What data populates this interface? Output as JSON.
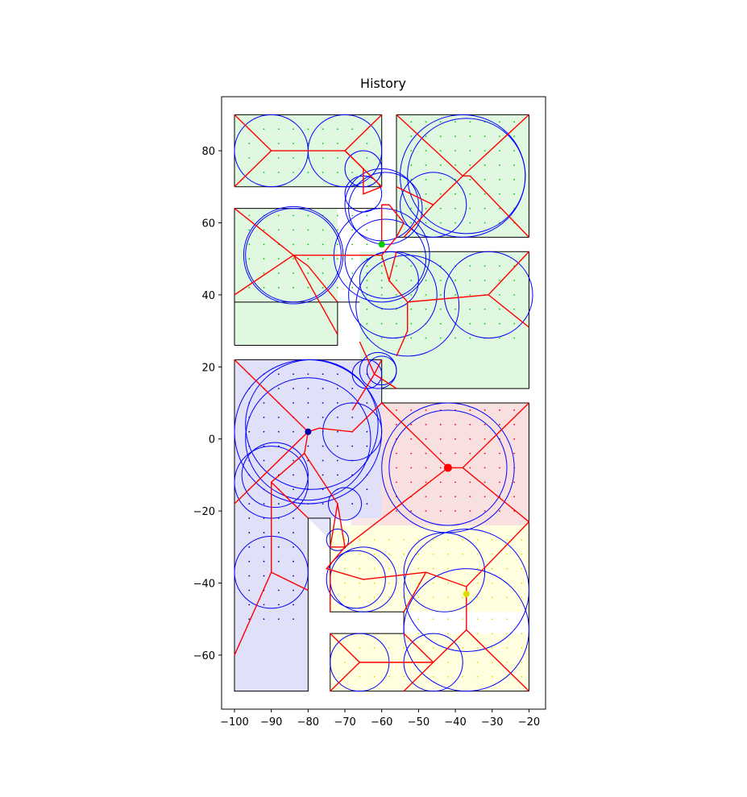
{
  "chart_data": {
    "type": "scatter",
    "title": "History",
    "xlabel": "",
    "ylabel": "",
    "xlim": [
      -103.5,
      -15.5
    ],
    "ylim": [
      -75,
      95
    ],
    "xticks": [
      -100,
      -90,
      -80,
      -70,
      -60,
      -50,
      -40,
      -30,
      -20
    ],
    "yticks": [
      -60,
      -40,
      -20,
      0,
      20,
      40,
      60,
      80
    ],
    "grid": false,
    "colors": {
      "region_fill_green": "#e0f8e0",
      "region_fill_blue": "#e0e0f8",
      "region_fill_red": "#f8e0e0",
      "region_fill_yellow": "#ffffe0",
      "wall_outline": "#000000",
      "skeleton": "#ff0000",
      "circle": "#0000ff",
      "green_dot": "#00cc00",
      "blue_dot": "#0000aa",
      "red_dot": "#ff0000",
      "yellow_dot": "#dddd00"
    },
    "rectangles": [
      {
        "x": [
          -100,
          -60
        ],
        "y": [
          70,
          90
        ],
        "fill": "green"
      },
      {
        "x": [
          -56,
          -20
        ],
        "y": [
          56,
          90
        ],
        "fill": "green"
      },
      {
        "x": [
          -100,
          -72
        ],
        "y": [
          26,
          64
        ],
        "fill": "green"
      },
      {
        "x": [
          -100,
          -72
        ],
        "y": [
          38,
          64
        ],
        "fill": "green",
        "shade_only": true
      },
      {
        "x": [
          -66,
          -20
        ],
        "y": [
          14,
          52
        ],
        "fill": "green"
      },
      {
        "x": [
          -100,
          -80
        ],
        "y": [
          -70,
          22
        ],
        "fill": "blue"
      },
      {
        "x": [
          -80,
          -60
        ],
        "y": [
          -22,
          22
        ],
        "fill": "blue",
        "open": true
      },
      {
        "x": [
          -60,
          -20
        ],
        "y": [
          -24,
          10
        ],
        "fill": "red"
      },
      {
        "x": [
          -74,
          -20
        ],
        "y": [
          -48,
          -24
        ],
        "fill": "yellow"
      },
      {
        "x": [
          -74,
          -20
        ],
        "y": [
          -70,
          -54
        ],
        "fill": "yellow"
      }
    ],
    "walls": [
      [
        [
          -100,
          70
        ],
        [
          -60,
          70
        ],
        [
          -60,
          90
        ],
        [
          -100,
          90
        ],
        [
          -100,
          70
        ]
      ],
      [
        [
          -56,
          56
        ],
        [
          -20,
          56
        ],
        [
          -20,
          90
        ],
        [
          -56,
          90
        ],
        [
          -56,
          56
        ]
      ],
      [
        [
          -100,
          26
        ],
        [
          -72,
          26
        ],
        [
          -72,
          38
        ],
        [
          -100,
          38
        ]
      ],
      [
        [
          -100,
          26
        ],
        [
          -100,
          64
        ],
        [
          -60,
          64
        ]
      ],
      [
        [
          -66,
          38
        ],
        [
          -72,
          38
        ]
      ],
      [
        [
          -56,
          52
        ],
        [
          -20,
          52
        ],
        [
          -20,
          14
        ],
        [
          -60,
          14
        ],
        [
          -60,
          22
        ],
        [
          -100,
          22
        ],
        [
          -100,
          -70
        ],
        [
          -80,
          -70
        ],
        [
          -80,
          -22
        ],
        [
          -74,
          -22
        ],
        [
          -74,
          -48
        ],
        [
          -54,
          -48
        ],
        [
          -54,
          -54
        ],
        [
          -74,
          -54
        ],
        [
          -74,
          -70
        ],
        [
          -20,
          -70
        ],
        [
          -20,
          10
        ],
        [
          -60,
          10
        ],
        [
          -60,
          14
        ]
      ]
    ],
    "shades": [
      {
        "fill": "green",
        "points": [
          [
            -100,
            38
          ],
          [
            -72,
            28
          ],
          [
            -85,
            34
          ]
        ]
      },
      {
        "fill": "green",
        "points": [
          [
            -60,
            52
          ],
          [
            -56,
            24
          ],
          [
            -20,
            32
          ],
          [
            -20,
            52
          ]
        ]
      },
      {
        "fill": "blue",
        "points": [
          [
            -100,
            -22
          ],
          [
            -80,
            -40
          ],
          [
            -100,
            -60
          ]
        ]
      },
      {
        "fill": "red",
        "points": [
          [
            -60,
            10
          ],
          [
            -70,
            -30
          ],
          [
            -20,
            -23
          ],
          [
            -20,
            10
          ]
        ]
      },
      {
        "fill": "blue",
        "points": [
          [
            -80,
            -22
          ],
          [
            -72,
            -30
          ],
          [
            -74,
            -22
          ]
        ]
      }
    ],
    "skeleton_lines": [
      [
        [
          -100,
          90
        ],
        [
          -90,
          80
        ],
        [
          -100,
          70
        ]
      ],
      [
        [
          -90,
          80
        ],
        [
          -70,
          80
        ],
        [
          -60,
          90
        ]
      ],
      [
        [
          -70,
          80
        ],
        [
          -60,
          70
        ]
      ],
      [
        [
          -70,
          80
        ],
        [
          -65,
          75
        ],
        [
          -65,
          68
        ],
        [
          -60,
          70
        ]
      ],
      [
        [
          -56,
          90
        ],
        [
          -38,
          73
        ],
        [
          -20,
          90
        ]
      ],
      [
        [
          -38,
          73
        ],
        [
          -36,
          73
        ],
        [
          -20,
          56
        ]
      ],
      [
        [
          -38,
          73
        ],
        [
          -46,
          65
        ],
        [
          -56,
          70
        ]
      ],
      [
        [
          -46,
          65
        ],
        [
          -54,
          56
        ]
      ],
      [
        [
          -60,
          65
        ],
        [
          -60,
          54
        ]
      ],
      [
        [
          -60,
          65
        ],
        [
          -58,
          65
        ],
        [
          -54,
          60
        ],
        [
          -56,
          56
        ]
      ],
      [
        [
          -100,
          64
        ],
        [
          -84,
          51
        ],
        [
          -100,
          40
        ]
      ],
      [
        [
          -84,
          51
        ],
        [
          -60,
          51
        ],
        [
          -56,
          56
        ]
      ],
      [
        [
          -84,
          51
        ],
        [
          -72,
          29
        ]
      ],
      [
        [
          -84,
          51
        ],
        [
          -80,
          48
        ],
        [
          -72,
          38
        ]
      ],
      [
        [
          -60,
          51
        ],
        [
          -58,
          44
        ],
        [
          -56,
          52
        ]
      ],
      [
        [
          -58,
          44
        ],
        [
          -53,
          38
        ],
        [
          -53,
          30
        ],
        [
          -56,
          23
        ]
      ],
      [
        [
          -53,
          38
        ],
        [
          -31,
          40
        ],
        [
          -20,
          52
        ]
      ],
      [
        [
          -31,
          40
        ],
        [
          -20,
          31
        ]
      ],
      [
        [
          -66,
          27
        ],
        [
          -62,
          18
        ],
        [
          -56,
          14
        ]
      ],
      [
        [
          -62,
          18
        ],
        [
          -60,
          22
        ]
      ],
      [
        [
          -62,
          18
        ],
        [
          -68,
          8
        ]
      ],
      [
        [
          -100,
          22
        ],
        [
          -80,
          2
        ],
        [
          -100,
          -18
        ]
      ],
      [
        [
          -80,
          2
        ],
        [
          -77,
          3
        ],
        [
          -68,
          2
        ],
        [
          -60,
          10
        ]
      ],
      [
        [
          -80,
          2
        ],
        [
          -81,
          -4
        ],
        [
          -90,
          -12
        ],
        [
          -90,
          -37
        ],
        [
          -100,
          -60
        ]
      ],
      [
        [
          -90,
          -12
        ],
        [
          -80,
          -22
        ]
      ],
      [
        [
          -81,
          -4
        ],
        [
          -72,
          -18
        ],
        [
          -74,
          -30
        ],
        [
          -70,
          -30
        ],
        [
          -75,
          -36
        ],
        [
          -65,
          -39
        ],
        [
          -48,
          -37
        ]
      ],
      [
        [
          -72,
          -18
        ],
        [
          -70,
          -30
        ]
      ],
      [
        [
          -90,
          -37
        ],
        [
          -80,
          -42
        ]
      ],
      [
        [
          -60,
          10
        ],
        [
          -42,
          -8
        ],
        [
          -38,
          -8
        ],
        [
          -20,
          10
        ]
      ],
      [
        [
          -38,
          -8
        ],
        [
          -20,
          -23
        ]
      ],
      [
        [
          -42,
          -8
        ],
        [
          -70,
          -30
        ]
      ],
      [
        [
          -74,
          -36
        ],
        [
          -74,
          -48
        ]
      ],
      [
        [
          -48,
          -37
        ],
        [
          -54,
          -48
        ]
      ],
      [
        [
          -48,
          -37
        ],
        [
          -37,
          -41
        ],
        [
          -20,
          -23
        ]
      ],
      [
        [
          -37,
          -41
        ],
        [
          -37,
          -53
        ],
        [
          -20,
          -70
        ]
      ],
      [
        [
          -37,
          -53
        ],
        [
          -46,
          -62
        ],
        [
          -54,
          -54
        ]
      ],
      [
        [
          -46,
          -62
        ],
        [
          -66,
          -62
        ],
        [
          -74,
          -54
        ]
      ],
      [
        [
          -66,
          -62
        ],
        [
          -74,
          -70
        ]
      ],
      [
        [
          -46,
          -62
        ],
        [
          -54,
          -70
        ]
      ]
    ],
    "circles": [
      {
        "cx": -90,
        "cy": 80,
        "r": 10
      },
      {
        "cx": -70,
        "cy": 80,
        "r": 10
      },
      {
        "cx": -65,
        "cy": 75,
        "r": 5
      },
      {
        "cx": -65,
        "cy": 68,
        "r": 5
      },
      {
        "cx": -60,
        "cy": 65,
        "r": 10
      },
      {
        "cx": -59,
        "cy": 64,
        "r": 10
      },
      {
        "cx": -38,
        "cy": 73,
        "r": 17
      },
      {
        "cx": -37,
        "cy": 73,
        "r": 16
      },
      {
        "cx": -46,
        "cy": 65,
        "r": 9
      },
      {
        "cx": -84,
        "cy": 51,
        "r": 13.5
      },
      {
        "cx": -84,
        "cy": 51,
        "r": 13
      },
      {
        "cx": -60,
        "cy": 51,
        "r": 13
      },
      {
        "cx": -59,
        "cy": 50,
        "r": 11
      },
      {
        "cx": -58,
        "cy": 44,
        "r": 8
      },
      {
        "cx": -57,
        "cy": 40,
        "r": 12
      },
      {
        "cx": -53,
        "cy": 37,
        "r": 14
      },
      {
        "cx": -31,
        "cy": 40,
        "r": 12
      },
      {
        "cx": -64,
        "cy": 18,
        "r": 4
      },
      {
        "cx": -61,
        "cy": 19,
        "r": 5
      },
      {
        "cx": -60,
        "cy": 19,
        "r": 4
      },
      {
        "cx": -80,
        "cy": 2,
        "r": 20
      },
      {
        "cx": -79,
        "cy": 4,
        "r": 18
      },
      {
        "cx": -80,
        "cy": 0,
        "r": 17
      },
      {
        "cx": -68,
        "cy": 2,
        "r": 8
      },
      {
        "cx": -90,
        "cy": -12,
        "r": 10
      },
      {
        "cx": -89,
        "cy": -10,
        "r": 9
      },
      {
        "cx": -70,
        "cy": -18,
        "r": 4.5
      },
      {
        "cx": -72,
        "cy": -28,
        "r": 3
      },
      {
        "cx": -90,
        "cy": -37,
        "r": 10
      },
      {
        "cx": -42,
        "cy": -8,
        "r": 18
      },
      {
        "cx": -42,
        "cy": -8,
        "r": 16
      },
      {
        "cx": -65,
        "cy": -39,
        "r": 9
      },
      {
        "cx": -67,
        "cy": -39,
        "r": 8
      },
      {
        "cx": -43,
        "cy": -37,
        "r": 11
      },
      {
        "cx": -37,
        "cy": -42,
        "r": 17
      },
      {
        "cx": -37,
        "cy": -53,
        "r": 17
      },
      {
        "cx": -46,
        "cy": -62,
        "r": 8
      },
      {
        "cx": -66,
        "cy": -62,
        "r": 8
      }
    ],
    "markers": [
      {
        "name": "green",
        "x": -60,
        "y": 54,
        "size": 4
      },
      {
        "name": "blue",
        "x": -80,
        "y": 2,
        "size": 4
      },
      {
        "name": "red",
        "x": -42,
        "y": -8,
        "size": 5
      },
      {
        "name": "yellow",
        "x": -37,
        "y": -43,
        "size": 4
      }
    ],
    "grid_dots": [
      {
        "fill": "green",
        "xs": [
          -96,
          -92,
          -88,
          -84,
          -80,
          -76,
          -72,
          -68,
          -64
        ],
        "ys": [
          74,
          78,
          82,
          86
        ]
      },
      {
        "fill": "green",
        "xs": [
          -52,
          -48,
          -44,
          -40,
          -36,
          -32,
          -28,
          -24
        ],
        "ys": [
          60,
          64,
          68,
          72,
          76,
          80,
          84,
          88
        ]
      },
      {
        "fill": "green",
        "xs": [
          -96,
          -92,
          -88,
          -84,
          -80,
          -76,
          -72,
          -68,
          -64,
          -60
        ],
        "ys": [
          42,
          46,
          50,
          54,
          58,
          62
        ]
      },
      {
        "fill": "green",
        "xs": [
          -64,
          -60,
          -56,
          -52,
          -48,
          -44,
          -40,
          -36,
          -32,
          -28,
          -24
        ],
        "ys": [
          28,
          32,
          36,
          40,
          44,
          48
        ]
      },
      {
        "fill": "blue",
        "xs": [
          -96,
          -92,
          -88,
          -84,
          -80,
          -76,
          -72,
          -68,
          -64
        ],
        "ys": [
          -18,
          -14,
          -10,
          -6,
          -2,
          2,
          6,
          10,
          14,
          18
        ]
      },
      {
        "fill": "blue",
        "xs": [
          -96,
          -92,
          -88,
          -84
        ],
        "ys": [
          -50,
          -46,
          -42,
          -38,
          -34,
          -30,
          -26,
          -22
        ]
      },
      {
        "fill": "red",
        "xs": [
          -56,
          -52,
          -48,
          -44,
          -40,
          -36,
          -32,
          -28,
          -24
        ],
        "ys": [
          -20,
          -16,
          -12,
          -8,
          -4,
          0,
          4,
          8
        ]
      },
      {
        "fill": "yellow",
        "xs": [
          -70,
          -66,
          -62,
          -58,
          -54,
          -50,
          -46,
          -42,
          -38,
          -34,
          -30,
          -26,
          -22
        ],
        "ys": [
          -44,
          -40,
          -36,
          -32,
          -28
        ]
      },
      {
        "fill": "yellow",
        "xs": [
          -70,
          -66,
          -62,
          -58,
          -54,
          -50,
          -46,
          -42,
          -38,
          -34,
          -30,
          -26,
          -22
        ],
        "ys": [
          -66,
          -62,
          -58
        ]
      },
      {
        "fill": "yellow",
        "xs": [
          -50,
          -46,
          -42,
          -38,
          -34,
          -30,
          -26,
          -22
        ],
        "ys": [
          -54,
          -50
        ]
      }
    ]
  }
}
